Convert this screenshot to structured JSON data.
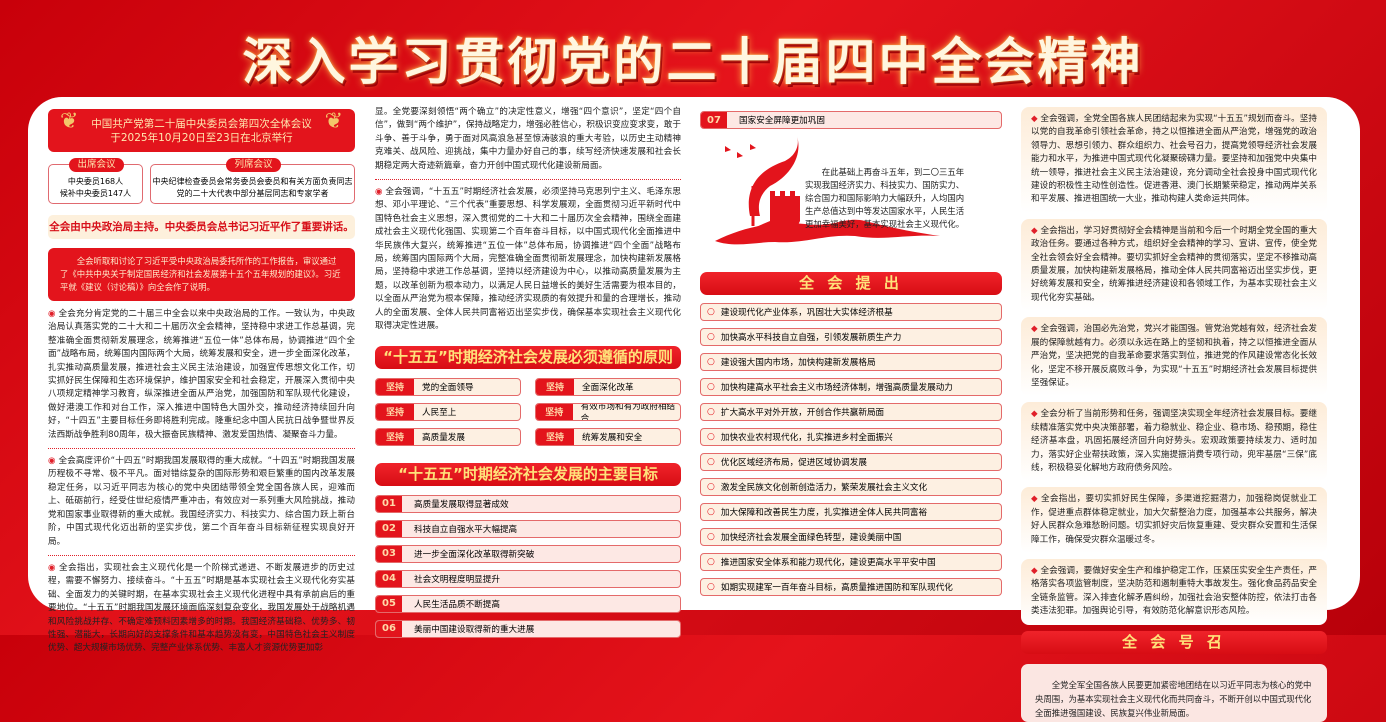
{
  "title": "深入学习贯彻党的二十届四中全会精神",
  "colors": {
    "primary_red": "#e3141c",
    "gold": "#ffe27a",
    "cream": "#fdf0e2"
  },
  "col1": {
    "banner": [
      "中国共产党第二十届中央委员会第四次全体会议",
      "于2025年10月20日至23日在北京举行"
    ],
    "attend": {
      "label": "出席会议",
      "lines": [
        "中央委员168人",
        "候补中央委员147人"
      ]
    },
    "observe": {
      "label": "列席会议",
      "lines": [
        "中央纪律检查委员会常务委员会委员和有关方面负责同志",
        "党的二十大代表中部分基层同志和专家学者"
      ]
    },
    "highlight": "全会由中央政治局主持。中央委员会总书记习近平作了重要讲话。",
    "report": "全会听取和讨论了习近平受中央政治局委托所作的工作报告，审议通过了《中共中央关于制定国民经济和社会发展第十五个五年规划的建议》。习近平就《建议（讨论稿）》向全会作了说明。",
    "paras": [
      "全会充分肯定党的二十届三中全会以来中央政治局的工作。一致认为，中央政治局认真落实党的二十大和二十届历次全会精神，坚持稳中求进工作总基调，完整准确全面贯彻新发展理念，统筹推进“五位一体”总体布局，协调推进“四个全面”战略布局，统筹国内国际两个大局，统筹发展和安全，进一步全面深化改革，扎实推动高质量发展，推进社会主义民主法治建设，加强宣传思想文化工作，切实抓好民生保障和生态环境保护，维护国家安全和社会稳定，开展深入贯彻中央八项规定精神学习教育，纵深推进全面从严治党，加强国防和军队现代化建设，做好港澳工作和对台工作，深入推进中国特色大国外交，推动经济持续回升向好，“十四五”主要目标任务即将胜利完成。隆重纪念中国人民抗日战争暨世界反法西斯战争胜利80周年，极大振奋民族精神、激发爱国热情、凝聚奋斗力量。",
      "全会高度评价“十四五”时期我国发展取得的重大成就。“十四五”时期我国发展历程极不寻常、极不平凡。面对错综复杂的国际形势和艰巨繁重的国内改革发展稳定任务，以习近平同志为核心的党中央团结带领全党全国各族人民，迎难而上、砥砺前行，经受住世纪疫情严重冲击，有效应对一系列重大风险挑战，推动党和国家事业取得新的重大成就。我国经济实力、科技实力、综合国力跃上新台阶，中国式现代化迈出新的坚实步伐，第二个百年奋斗目标新征程实现良好开局。",
      "全会指出，实现社会主义现代化是一个阶梯式递进、不断发展进步的历史过程，需要不懈努力、接续奋斗。“十五五”时期是基本实现社会主义现代化夯实基础、全面发力的关键时期，在基本实现社会主义现代化进程中具有承前启后的重要地位。“十五五”时期我国发展环境面临深刻复杂变化，我国发展处于战略机遇和风险挑战并存、不确定难预料因素增多的时期。我国经济基础稳、优势多、韧性强、潜能大，长期向好的支撑条件和基本趋势没有变，中国特色社会主义制度优势、超大规模市场优势、完整产业体系优势、丰富人才资源优势更加彰"
    ]
  },
  "col2": {
    "continued": "显。全党要深刻领悟“两个确立”的决定性意义，增强“四个意识”，坚定“四个自信”，做到“两个维护”，保持战略定力，增强必胜信心，积极识变应变求变，敢于斗争、善于斗争，勇于面对风高浪急甚至惊涛骇浪的重大考验，以历史主动精神克难关、战风险、迎挑战，集中力量办好自己的事，续写经济快速发展和社会长期稳定两大奇迹新篇章，奋力开创中国式现代化建设新局面。",
    "para": "全会强调，“十五五”时期经济社会发展，必须坚持马克思列宁主义、毛泽东思想、邓小平理论、“三个代表”重要思想、科学发展观，全面贯彻习近平新时代中国特色社会主义思想，深入贯彻党的二十大和二十届历次全会精神，围绕全面建成社会主义现代化强国、实现第二个百年奋斗目标，以中国式现代化全面推进中华民族伟大复兴，统筹推进“五位一体”总体布局，协调推进“四个全面”战略布局，统筹国内国际两个大局，完整准确全面贯彻新发展理念，加快构建新发展格局，坚持稳中求进工作总基调，坚持以经济建设为中心，以推动高质量发展为主题，以改革创新为根本动力，以满足人民日益增长的美好生活需要为根本目的，以全面从严治党为根本保障，推动经济实现质的有效提升和量的合理增长，推动人的全面发展、全体人民共同富裕迈出坚实步伐，确保基本实现社会主义现代化取得决定性进展。",
    "principles_title": "“十五五”时期经济社会发展必须遵循的原则",
    "principle_tag": "坚持",
    "principles": [
      "党的全面领导",
      "全面深化改革",
      "人民至上",
      "有效市场和有为政府相结合",
      "高质量发展",
      "统筹发展和安全"
    ],
    "goals_title": "“十五五”时期经济社会发展的主要目标",
    "goals": [
      {
        "num": "01",
        "text": "高质量发展取得显著成效"
      },
      {
        "num": "02",
        "text": "科技自立自强水平大幅提高"
      },
      {
        "num": "03",
        "text": "进一步全面深化改革取得新突破"
      },
      {
        "num": "04",
        "text": "社会文明程度明显提升"
      },
      {
        "num": "05",
        "text": "人民生活品质不断提高"
      },
      {
        "num": "06",
        "text": "美丽中国建设取得新的重大进展"
      }
    ]
  },
  "col3": {
    "goal7": {
      "num": "07",
      "text": "国家安全屏障更加巩固"
    },
    "vision": "在此基础上再奋斗五年，到二〇三五年实现我国经济实力、科技实力、国防实力、综合国力和国际影响力大幅跃升，人均国内生产总值达到中等发达国家水平，人民生活更加幸福美好，基本实现社会主义现代化。",
    "proposals_title": "全 会 提 出",
    "proposals": [
      "建设现代化产业体系，巩固壮大实体经济根基",
      "加快高水平科技自立自强，引领发展新质生产力",
      "建设强大国内市场，加快构建新发展格局",
      "加快构建高水平社会主义市场经济体制，增强高质量发展动力",
      "扩大高水平对外开放，开创合作共赢新局面",
      "加快农业农村现代化，扎实推进乡村全面振兴",
      "优化区域经济布局，促进区域协调发展",
      "激发全民族文化创新创造活力，繁荣发展社会主义文化",
      "加大保障和改善民生力度，扎实推进全体人民共同富裕",
      "加快经济社会发展全面绿色转型，建设美丽中国",
      "推进国家安全体系和能力现代化，建设更高水平平安中国",
      "如期实现建军一百年奋斗目标，高质量推进国防和军队现代化"
    ]
  },
  "col4": {
    "cards": [
      "全会强调，全党全国各族人民团结起来为实现“十五五”规划而奋斗。坚持以党的自我革命引领社会革命，持之以恒推进全面从严治党，增强党的政治领导力、思想引领力、群众组织力、社会号召力，提高党领导经济社会发展能力和水平，为推进中国式现代化凝聚磅礴力量。要坚持和加强党中央集中统一领导，推进社会主义民主法治建设，充分调动全社会投身中国式现代化建设的积极性主动性创造性。促进香港、澳门长期繁荣稳定，推动两岸关系和平发展、推进祖国统一大业，推动构建人类命运共同体。",
      "全会指出，学习好贯彻好全会精神是当前和今后一个时期全党全国的重大政治任务。要通过各种方式，组织好全会精神的学习、宣讲、宣传，使全党全社会领会好全会精神。要切实抓好全会精神的贯彻落实，坚定不移推动高质量发展，加快构建新发展格局，推动全体人民共同富裕迈出坚实步伐，更好统筹发展和安全，统筹推进经济建设和各领域工作，为基本实现社会主义现代化夯实基础。",
      "全会强调，治国必先治党，党兴才能国强。管党治党越有效，经济社会发展的保障就越有力。必须以永远在路上的坚韧和执着，持之以恒推进全面从严治党，坚决把党的自我革命要求落实到位，推进党的作风建设常态化长效化，坚定不移开展反腐败斗争，为实现“十五五”时期经济社会发展目标提供坚强保证。",
      "全会分析了当前形势和任务，强调坚决实现全年经济社会发展目标。要继续精准落实党中央决策部署，着力稳就业、稳企业、稳市场、稳预期，稳住经济基本盘，巩固拓展经济回升向好势头。宏观政策要持续发力、适时加力，落实好企业帮扶政策，深入实施提振消费专项行动，兜牢基层“三保”底线，积极稳妥化解地方政府债务风险。",
      "全会指出，要切实抓好民生保障，多渠道挖掘潜力，加强稳岗促就业工作，促进重点群体稳定就业，加大欠薪整治力度，加强基本公共服务，解决好人民群众急难愁盼问题。切实抓好灾后恢复重建、受灾群众安置和生活保障工作，确保受灾群众温暖过冬。",
      "全会强调，要做好安全生产和维护稳定工作，压紧压实安全生产责任，严格落实各项监管制度，坚决防范和遏制重特大事故发生。强化食品药品安全全链条监管。深入排查化解矛盾纠纷，加强社会治安整体防控，依法打击各类违法犯罪。加强舆论引导，有效防范化解意识形态风险。"
    ],
    "call_title": "全 会 号 召",
    "call": "全党全军全国各族人民要更加紧密地团结在以习近平同志为核心的党中央周围，为基本实现社会主义现代化而共同奋斗，不断开创以中国式现代化全面推进强国建设、民族复兴伟业新局面。"
  }
}
